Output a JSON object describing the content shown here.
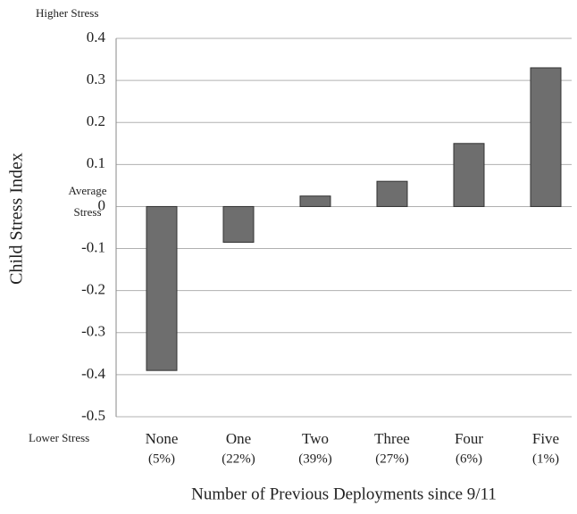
{
  "chart_data": {
    "type": "bar",
    "y_label": "Child  Stress Index",
    "x_label": "Number of Previous Deployments since 9/11",
    "annotations": {
      "top": "Higher Stress",
      "middle": [
        "Average",
        "Stress"
      ],
      "bottom": "Lower Stress"
    },
    "categories": [
      "None",
      "One",
      "Two",
      "Three",
      "Four",
      "Five"
    ],
    "category_shares": [
      "(5%)",
      "(22%)",
      "(39%)",
      "(27%)",
      "(6%)",
      "(1%)"
    ],
    "values": [
      -0.39,
      -0.085,
      0.025,
      0.06,
      0.15,
      0.33
    ],
    "color": "#6e6e6e",
    "ylim": [
      -0.5,
      0.4
    ],
    "yticks": [
      0.4,
      0.3,
      0.2,
      0.1,
      0,
      -0.1,
      -0.2,
      -0.3,
      -0.4,
      -0.5
    ],
    "grid": true
  }
}
